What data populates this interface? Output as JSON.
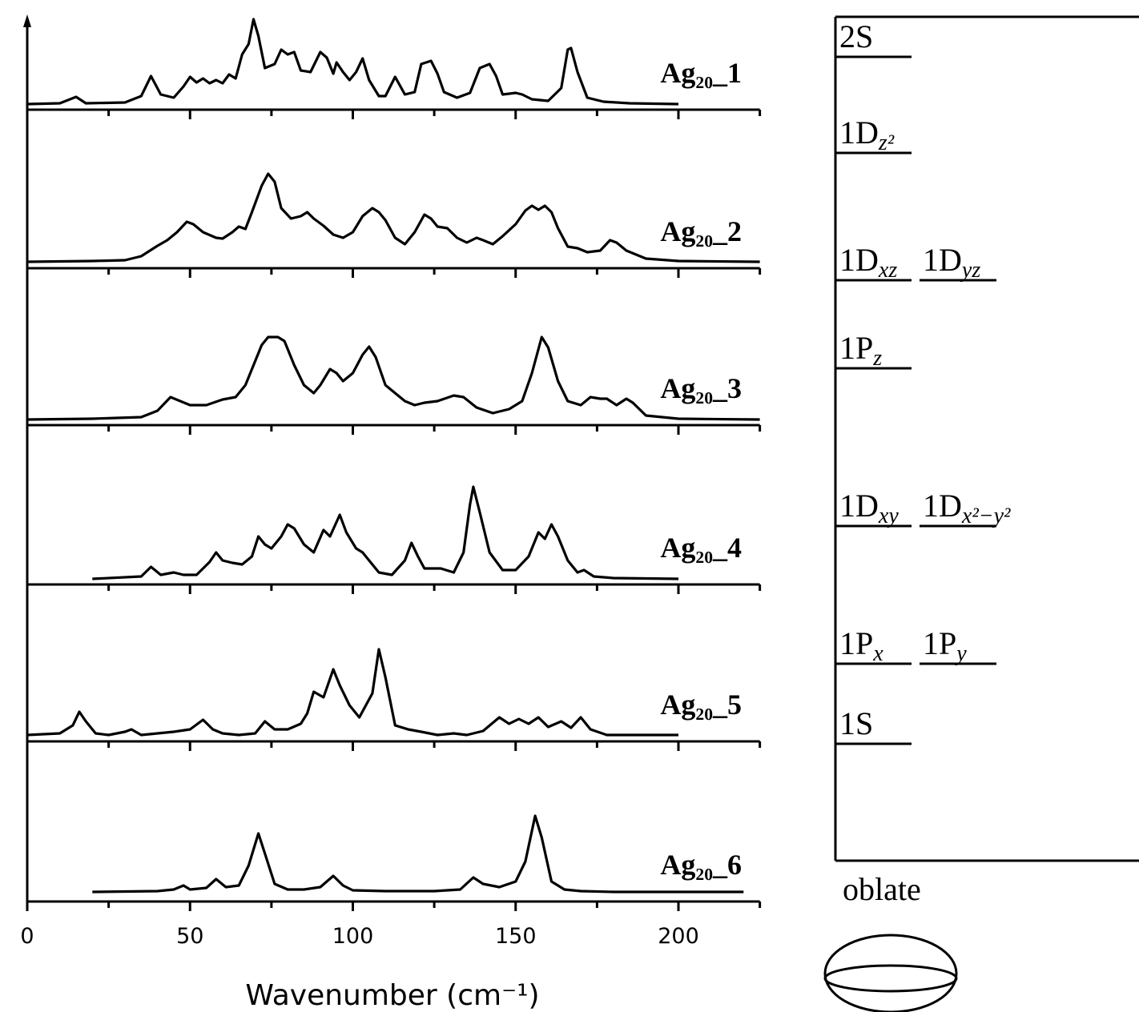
{
  "chart_data": {
    "type": "line",
    "xlabel": "Wavenumber (cm⁻¹)",
    "xlim": [
      0,
      225
    ],
    "xticks": [
      0,
      50,
      100,
      150,
      200
    ],
    "xminorticks": [
      25,
      75,
      125,
      175,
      225
    ],
    "ylim": [
      0,
      197
    ],
    "color": "#000000",
    "series": [
      {
        "name": "Ag₂₀_1",
        "x": [
          0,
          10,
          15,
          18,
          30,
          35,
          38,
          41,
          45,
          48,
          50,
          52,
          54,
          56,
          58,
          60,
          62,
          64,
          66,
          68,
          69.5,
          71,
          73,
          76,
          78,
          80,
          82,
          84,
          87,
          90,
          92,
          94,
          95,
          97,
          99,
          101,
          103,
          105,
          108,
          110,
          113,
          116,
          119,
          121,
          124,
          126,
          128,
          132,
          136,
          139,
          142,
          144,
          146,
          150,
          152,
          155,
          160,
          164,
          166,
          167,
          169,
          172,
          177,
          185,
          200
        ],
        "values": [
          7,
          8,
          16,
          8,
          9,
          17,
          42,
          19,
          15,
          29,
          41,
          34,
          39,
          33,
          37,
          33,
          44,
          39,
          69,
          82,
          113,
          92,
          52,
          57,
          75,
          69,
          72,
          49,
          47,
          72,
          65,
          45,
          59,
          47,
          37,
          47,
          64,
          37,
          17,
          17,
          41,
          19,
          22,
          57,
          61,
          45,
          22,
          15,
          21,
          52,
          57,
          42,
          19,
          21,
          19,
          13,
          11,
          27,
          75,
          77,
          47,
          15,
          10,
          8,
          7
        ]
      },
      {
        "name": "Ag₂₀_2",
        "x": [
          0,
          20,
          30,
          35,
          40,
          43,
          46,
          49,
          51,
          54,
          58,
          60,
          63,
          65,
          67,
          69,
          72,
          74,
          76,
          78,
          81,
          84,
          86,
          88,
          91,
          94,
          97,
          100,
          103,
          106,
          108,
          110,
          113,
          116,
          119,
          122,
          124,
          126,
          129,
          132,
          135,
          138,
          140,
          143,
          146,
          150,
          153,
          155,
          157,
          159,
          161,
          163,
          166,
          169,
          172,
          176,
          179,
          181,
          184,
          190,
          200,
          225
        ],
        "values": [
          8,
          9,
          10,
          15,
          28,
          35,
          45,
          58,
          55,
          45,
          38,
          37,
          45,
          52,
          49,
          70,
          103,
          118,
          108,
          75,
          62,
          65,
          70,
          62,
          53,
          42,
          38,
          45,
          65,
          75,
          70,
          60,
          38,
          30,
          45,
          67,
          62,
          52,
          50,
          38,
          32,
          38,
          35,
          30,
          40,
          55,
          72,
          78,
          73,
          78,
          70,
          50,
          27,
          25,
          20,
          22,
          35,
          32,
          22,
          12,
          9,
          8
        ]
      },
      {
        "name": "Ag₂₀_3",
        "x": [
          0,
          20,
          35,
          40,
          44,
          47,
          50,
          55,
          60,
          64,
          67,
          70,
          72,
          74,
          77,
          79,
          82,
          85,
          88,
          90,
          93,
          95,
          97,
          100,
          103,
          105,
          107,
          110,
          113,
          116,
          119,
          122,
          126,
          131,
          134,
          138,
          143,
          148,
          152,
          155,
          158,
          160,
          163,
          166,
          170,
          173,
          176,
          178,
          181,
          184,
          186,
          190,
          200,
          225
        ],
        "values": [
          7,
          8,
          10,
          18,
          35,
          30,
          25,
          25,
          32,
          35,
          50,
          80,
          100,
          110,
          110,
          105,
          75,
          50,
          40,
          50,
          70,
          65,
          55,
          65,
          88,
          98,
          85,
          50,
          40,
          30,
          25,
          28,
          30,
          37,
          35,
          22,
          15,
          20,
          30,
          65,
          110,
          97,
          55,
          30,
          25,
          35,
          33,
          33,
          25,
          33,
          28,
          12,
          8,
          7
        ]
      },
      {
        "name": "Ag₂₀_4",
        "x": [
          20,
          35,
          38,
          41,
          45,
          48,
          52,
          56,
          58,
          60,
          63,
          66,
          69,
          71,
          73,
          75,
          78,
          80,
          82,
          85,
          88,
          91,
          93,
          96,
          98,
          101,
          103,
          105,
          108,
          112,
          116,
          118,
          120,
          122,
          127,
          131,
          134,
          136,
          137,
          139,
          142,
          146,
          150,
          154,
          157,
          159,
          161,
          163,
          166,
          169,
          171,
          174,
          180,
          200
        ],
        "values": [
          7,
          10,
          22,
          12,
          15,
          12,
          12,
          28,
          40,
          30,
          27,
          25,
          35,
          60,
          50,
          45,
          60,
          75,
          70,
          50,
          40,
          68,
          60,
          87,
          65,
          45,
          40,
          30,
          15,
          12,
          30,
          52,
          35,
          20,
          20,
          15,
          40,
          100,
          122,
          90,
          40,
          18,
          18,
          35,
          65,
          57,
          75,
          60,
          30,
          15,
          18,
          10,
          8,
          7
        ]
      },
      {
        "name": "Ag₂₀_5",
        "x": [
          0,
          10,
          14,
          16,
          18,
          21,
          25,
          30,
          32,
          35,
          40,
          45,
          50,
          54,
          57,
          60,
          65,
          70,
          73,
          76,
          80,
          84,
          86,
          88,
          91,
          94,
          96,
          99,
          102,
          106,
          108,
          110,
          113,
          117,
          121,
          126,
          131,
          135,
          140,
          145,
          148,
          151,
          154,
          157,
          160,
          164,
          167,
          170,
          173,
          178,
          200
        ],
        "values": [
          8,
          10,
          20,
          37,
          25,
          10,
          8,
          12,
          15,
          8,
          10,
          12,
          15,
          27,
          15,
          10,
          8,
          10,
          25,
          15,
          15,
          22,
          35,
          62,
          55,
          90,
          70,
          45,
          30,
          60,
          115,
          80,
          20,
          15,
          12,
          8,
          10,
          8,
          13,
          30,
          22,
          28,
          22,
          30,
          18,
          25,
          17,
          30,
          15,
          8,
          8
        ]
      },
      {
        "name": "Ag₂₀_6",
        "x": [
          20,
          40,
          45,
          48,
          50,
          55,
          58,
          61,
          65,
          68,
          71,
          73,
          76,
          80,
          85,
          90,
          94,
          97,
          100,
          110,
          125,
          133,
          137,
          140,
          145,
          150,
          153,
          156,
          158,
          161,
          165,
          170,
          180,
          200,
          220
        ],
        "values": [
          12,
          13,
          15,
          20,
          15,
          17,
          28,
          18,
          20,
          45,
          85,
          60,
          22,
          15,
          15,
          18,
          32,
          20,
          14,
          13,
          13,
          15,
          30,
          22,
          18,
          25,
          50,
          107,
          80,
          25,
          15,
          13,
          12,
          12,
          12
        ]
      }
    ]
  },
  "diagram": {
    "levels": [
      [
        {
          "main": "2S",
          "sub": ""
        }
      ],
      [
        {
          "main": "1D",
          "sub": "z²"
        }
      ],
      [
        {
          "main": "1D",
          "sub": "xz"
        },
        {
          "main": "1D",
          "sub": "yz"
        }
      ],
      [
        {
          "main": "1P",
          "sub": "z"
        }
      ],
      [
        {
          "main": "1D",
          "sub": "xy"
        },
        {
          "main": "1D",
          "sub": "x²−y²"
        }
      ],
      [
        {
          "main": "1P",
          "sub": "x"
        },
        {
          "main": "1P",
          "sub": "y"
        }
      ],
      [
        {
          "main": "1S",
          "sub": ""
        }
      ]
    ],
    "shape_label": "oblate"
  }
}
